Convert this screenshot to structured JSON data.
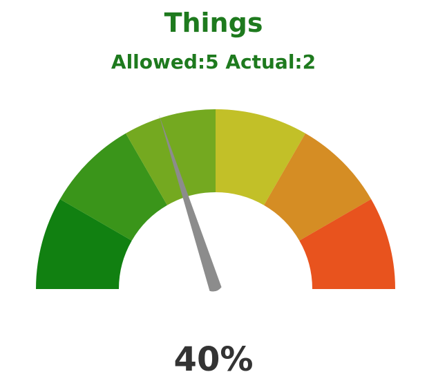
{
  "chart_data": {
    "type": "gauge",
    "title": "Things",
    "subtitle": "Allowed:5 Actual:2",
    "value": 40,
    "value_label": "40%",
    "min": 0,
    "max": 100,
    "bands": [
      {
        "from": 0,
        "to": 16.67,
        "color": "#118011"
      },
      {
        "from": 16.67,
        "to": 33.33,
        "color": "#3a951a"
      },
      {
        "from": 33.33,
        "to": 50,
        "color": "#74a920"
      },
      {
        "from": 50,
        "to": 66.67,
        "color": "#c2c028"
      },
      {
        "from": 66.67,
        "to": 83.33,
        "color": "#d58d24"
      },
      {
        "from": 83.33,
        "to": 100,
        "color": "#e8531e"
      }
    ],
    "needle_color": "#8c8c8c"
  }
}
